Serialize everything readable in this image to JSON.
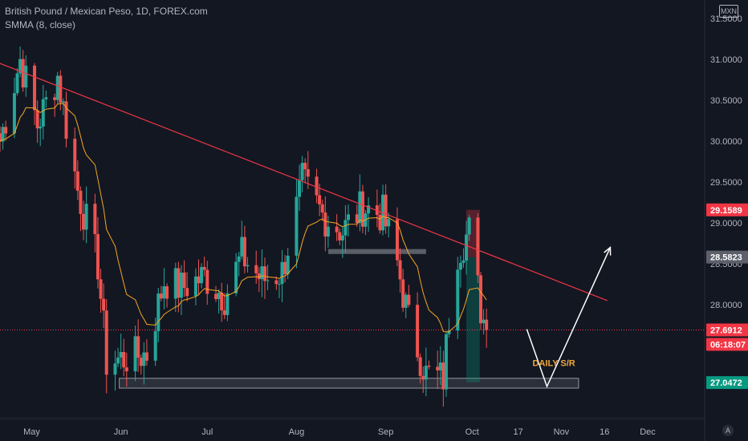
{
  "header": {
    "symbol_title": "British Pound / Mexican Peso, 1D, FOREX.com",
    "indicator": "SMMA (8, close)",
    "currency": "MXN",
    "auto_label": "A"
  },
  "colors": {
    "background": "#131722",
    "up": "#26a69a",
    "down": "#ef5350",
    "smma": "#f5a623",
    "trendline": "#f23645",
    "arrow": "#ffffff",
    "zone": "#787b86"
  },
  "chart_data": {
    "type": "candlestick",
    "title": "British Pound / Mexican Peso, 1D, FOREX.com",
    "ylim": [
      26.7,
      31.5
    ],
    "y_ticks": [
      "29.5000",
      "29.0000",
      "28.5000",
      "28.0000"
    ],
    "y_ticks_all": [
      {
        "label": "31.5000",
        "value": 31.5
      },
      {
        "label": "31.0000",
        "value": 31.0
      },
      {
        "label": "30.5000",
        "value": 30.5
      },
      {
        "label": "30.0000",
        "value": 30.0
      },
      {
        "label": "29.5000",
        "value": 29.5
      },
      {
        "label": "29.0000",
        "value": 29.0
      },
      {
        "label": "28.5000",
        "value": 28.5
      },
      {
        "label": "28.0000",
        "value": 28.0
      }
    ],
    "x_ticks": [
      {
        "label": "May",
        "date": "2022-05-01"
      },
      {
        "label": "Jun",
        "date": "2022-06-01"
      },
      {
        "label": "Jul",
        "date": "2022-07-01"
      },
      {
        "label": "Aug",
        "date": "2022-08-01"
      },
      {
        "label": "Sep",
        "date": "2022-09-01"
      },
      {
        "label": "Oct",
        "date": "2022-10-01"
      },
      {
        "label": "17",
        "date": "2022-10-17"
      },
      {
        "label": "Nov",
        "date": "2022-11-01"
      },
      {
        "label": "16",
        "date": "2022-11-16"
      },
      {
        "label": "Dec",
        "date": "2022-12-01"
      }
    ],
    "xlim": [
      "2022-04-20",
      "2022-12-18"
    ],
    "price_badges": [
      {
        "label": "29.1589",
        "value": 29.1589,
        "color": "#f23645"
      },
      {
        "label": "28.5823",
        "value": 28.5823,
        "color": "#5d606b"
      },
      {
        "label": "27.6912",
        "value": 27.6912,
        "color": "#f23645"
      },
      {
        "label": "06:18:07",
        "value": 27.5,
        "color": "#f23645"
      },
      {
        "label": "27.0472",
        "value": 27.0472,
        "color": "#089981"
      }
    ],
    "current_price": 27.6912,
    "support_zone": {
      "from": "2022-06-01",
      "to": "2022-11-07",
      "high": 27.1,
      "low": 26.98
    },
    "resistance_zone": {
      "from": "2022-08-12",
      "to": "2022-09-15",
      "high": 28.68,
      "low": 28.62
    },
    "trendline": [
      {
        "date": "2022-04-20",
        "value": 30.95
      },
      {
        "date": "2022-11-17",
        "value": 28.05
      }
    ],
    "projection_arrow": [
      {
        "date": "2022-10-20",
        "value": 27.7
      },
      {
        "date": "2022-10-27",
        "value": 27.0
      },
      {
        "date": "2022-11-18",
        "value": 28.7
      }
    ],
    "position_tool": {
      "from": "2022-09-29",
      "to": "2022-10-02",
      "entry": 28.58,
      "stop": 29.16,
      "target": 27.05
    },
    "annotations": [
      {
        "text": "DAILY S/R",
        "date": "2022-10-22",
        "value": 27.25
      }
    ],
    "anchors": [
      [
        "2022-04-20",
        30.0
      ],
      [
        "2022-04-27",
        31.0
      ],
      [
        "2022-05-03",
        30.2
      ],
      [
        "2022-05-10",
        30.8
      ],
      [
        "2022-05-17",
        29.4
      ],
      [
        "2022-05-24",
        28.5
      ],
      [
        "2022-05-27",
        27.3
      ],
      [
        "2022-06-03",
        27.35
      ],
      [
        "2022-06-10",
        27.4
      ],
      [
        "2022-06-16",
        28.3
      ],
      [
        "2022-06-22",
        28.2
      ],
      [
        "2022-06-30",
        28.35
      ],
      [
        "2022-07-07",
        28.1
      ],
      [
        "2022-07-13",
        28.6
      ],
      [
        "2022-07-20",
        28.3
      ],
      [
        "2022-07-27",
        28.4
      ],
      [
        "2022-08-03",
        29.5
      ],
      [
        "2022-08-10",
        29.1
      ],
      [
        "2022-08-17",
        28.9
      ],
      [
        "2022-08-24",
        29.2
      ],
      [
        "2022-08-31",
        29.1
      ],
      [
        "2022-09-05",
        28.5
      ],
      [
        "2022-09-09",
        27.8
      ],
      [
        "2022-09-15",
        27.15
      ],
      [
        "2022-09-21",
        27.1
      ],
      [
        "2022-09-25",
        28.6
      ],
      [
        "2022-09-30",
        28.9
      ],
      [
        "2022-10-04",
        27.95
      ],
      [
        "2022-10-06",
        27.69
      ]
    ]
  }
}
